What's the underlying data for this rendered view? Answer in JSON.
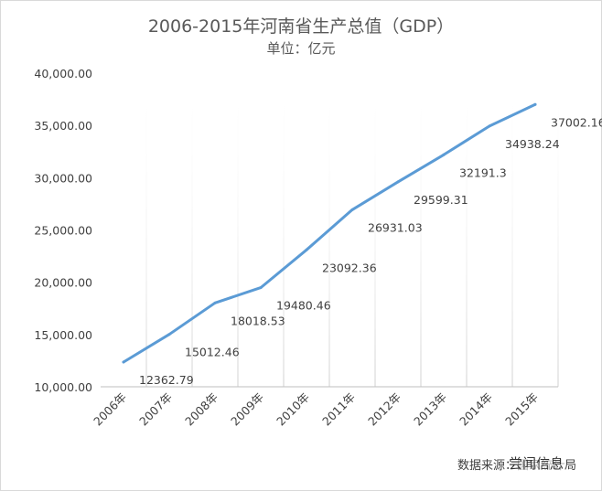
{
  "chart_data": {
    "type": "line",
    "title": "2006-2015年河南省生产总值（GDP）",
    "subtitle": "单位：亿元",
    "categories": [
      "2006年",
      "2007年",
      "2008年",
      "2009年",
      "2010年",
      "2011年",
      "2012年",
      "2013年",
      "2014年",
      "2015年"
    ],
    "values": [
      12362.79,
      15012.46,
      18018.53,
      19480.46,
      23092.36,
      26931.03,
      29599.31,
      32191.3,
      34938.24,
      37002.16
    ],
    "data_labels": [
      "12362.79",
      "15012.46",
      "18018.53",
      "19480.46",
      "23092.36",
      "26931.03",
      "29599.31",
      "32191.3",
      "34938.24",
      "37002.16"
    ],
    "yticks": [
      "10,000.00",
      "15,000.00",
      "20,000.00",
      "25,000.00",
      "30,000.00",
      "35,000.00",
      "40,000.00"
    ],
    "ylim": [
      10000,
      40000
    ],
    "grid": "vertical gradient",
    "line_color": "#5b9bd5",
    "source": "数据来源：国家统计局",
    "watermark": "尝闻信息"
  }
}
